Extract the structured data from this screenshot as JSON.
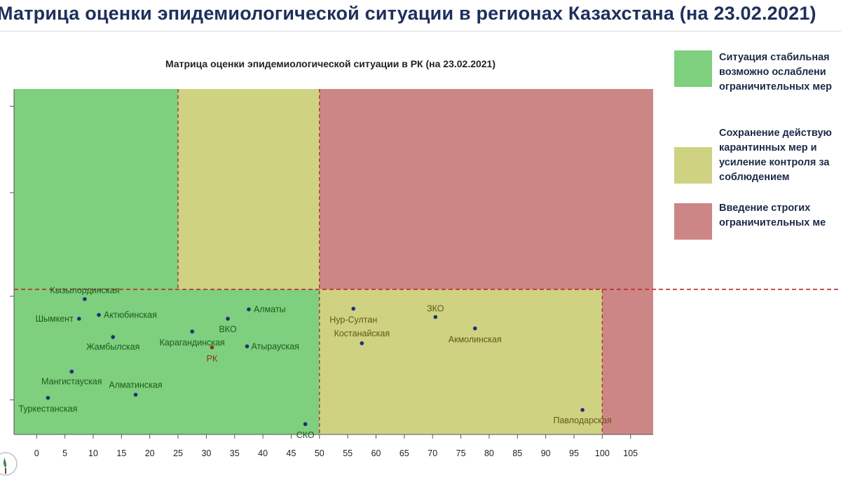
{
  "header": {
    "title": "Матрица оценки эпидемиологической ситуации в регионах Казахстана (на 23.02.2021)"
  },
  "legend": {
    "items": [
      {
        "label": "Ситуация стабильная\nвозможно ослаблени\nограничительных мер",
        "color": "#7ecf7e"
      },
      {
        "label": "Сохранение действую\nкарантинных мер и\nусиление контроля за\nсоблюдением",
        "color": "#cfd281"
      },
      {
        "label": "Введение строгих\nограничительных ме",
        "color": "#cd8686"
      }
    ]
  },
  "chart_data": {
    "type": "scatter",
    "title": "Матрица оценки эпидемиологической ситуации в РК (на 23.02.2021)",
    "xlabel": "",
    "ylabel": "",
    "xlim": [
      -4,
      109
    ],
    "x_ticks": [
      0,
      5,
      10,
      15,
      20,
      25,
      30,
      35,
      40,
      45,
      50,
      55,
      60,
      65,
      70,
      75,
      80,
      85,
      90,
      95,
      100,
      105
    ],
    "ylim": [
      0,
      1
    ],
    "y_ticks": [
      0.1,
      0.4,
      0.7,
      0.95
    ],
    "y_tick_labels": [
      "",
      "",
      "",
      ""
    ],
    "thresholds": {
      "x": [
        25,
        50,
        100
      ],
      "y": [
        0.42
      ]
    },
    "zones": [
      {
        "x": [
          -4,
          25
        ],
        "y": [
          0,
          1
        ],
        "color": "#7ecf7e"
      },
      {
        "x": [
          25,
          50
        ],
        "y": [
          0.42,
          1
        ],
        "color": "#cfd281"
      },
      {
        "x": [
          25,
          50
        ],
        "y": [
          0,
          0.42
        ],
        "color": "#7ecf7e"
      },
      {
        "x": [
          50,
          109
        ],
        "y": [
          0.42,
          1
        ],
        "color": "#cd8686"
      },
      {
        "x": [
          50,
          100
        ],
        "y": [
          0,
          0.42
        ],
        "color": "#cfd281"
      },
      {
        "x": [
          100,
          109
        ],
        "y": [
          0,
          0.42
        ],
        "color": "#cd8686"
      }
    ],
    "points": [
      {
        "name": "Кызылординская",
        "x": 8.5,
        "y": 0.392,
        "label_dx": 0,
        "label_dy": -8,
        "anchor": "middle",
        "label_color": "#1d5a1d"
      },
      {
        "name": "Шымкент",
        "x": 7.5,
        "y": 0.335,
        "label_dx": -8,
        "label_dy": 4,
        "anchor": "end",
        "label_color": "#1d5a1d"
      },
      {
        "name": "Актюбинская",
        "x": 11.0,
        "y": 0.346,
        "label_dx": 7,
        "label_dy": 4,
        "anchor": "start",
        "label_color": "#1d5a1d"
      },
      {
        "name": "Жамбылская",
        "x": 13.5,
        "y": 0.282,
        "label_dx": 0,
        "label_dy": 18,
        "anchor": "middle",
        "label_color": "#1d5a1d"
      },
      {
        "name": "Мангистауская",
        "x": 6.2,
        "y": 0.182,
        "label_dx": 0,
        "label_dy": 18,
        "anchor": "middle",
        "label_color": "#1d5a1d"
      },
      {
        "name": "Туркестанская",
        "x": 2.0,
        "y": 0.106,
        "label_dx": 0,
        "label_dy": 20,
        "anchor": "middle",
        "label_color": "#1d5a1d"
      },
      {
        "name": "Алматинская",
        "x": 17.5,
        "y": 0.115,
        "label_dx": 0,
        "label_dy": -10,
        "anchor": "middle",
        "label_color": "#1d5a1d"
      },
      {
        "name": "Карагандинская",
        "x": 27.5,
        "y": 0.298,
        "label_dx": 0,
        "label_dy": 20,
        "anchor": "middle",
        "label_color": "#1d5a1d"
      },
      {
        "name": "ВКО",
        "x": 33.8,
        "y": 0.335,
        "label_dx": 0,
        "label_dy": 19,
        "anchor": "middle",
        "label_color": "#1d5a1d"
      },
      {
        "name": "Алматы",
        "x": 37.5,
        "y": 0.362,
        "label_dx": 7,
        "label_dy": 4,
        "anchor": "start",
        "label_color": "#1d5a1d"
      },
      {
        "name": "Атырауская",
        "x": 37.2,
        "y": 0.255,
        "label_dx": 6,
        "label_dy": 4,
        "anchor": "start",
        "label_color": "#1d5a1d"
      },
      {
        "name": "РК",
        "x": 31.0,
        "y": 0.252,
        "label_dx": 0,
        "label_dy": 20,
        "anchor": "middle",
        "label_color": "#8a3a10",
        "point_color": "#8a3a10"
      },
      {
        "name": "СКО",
        "x": 47.5,
        "y": 0.03,
        "label_dx": 0,
        "label_dy": 20,
        "anchor": "middle",
        "label_color": "#1d5a1d"
      },
      {
        "name": "Нур-Султан",
        "x": 56.0,
        "y": 0.364,
        "label_dx": 0,
        "label_dy": 20,
        "anchor": "middle",
        "label_color": "#5e5a12"
      },
      {
        "name": "ЗКО",
        "x": 70.5,
        "y": 0.34,
        "label_dx": 0,
        "label_dy": -8,
        "anchor": "middle",
        "label_color": "#5e5a12"
      },
      {
        "name": "Костанайская",
        "x": 57.5,
        "y": 0.264,
        "label_dx": 0,
        "label_dy": -10,
        "anchor": "middle",
        "label_color": "#5e5a12"
      },
      {
        "name": "Акмолинская",
        "x": 77.5,
        "y": 0.307,
        "label_dx": 0,
        "label_dy": 20,
        "anchor": "middle",
        "label_color": "#5e5a12"
      },
      {
        "name": "Павлодарская",
        "x": 96.5,
        "y": 0.071,
        "label_dx": 0,
        "label_dy": 19,
        "anchor": "middle",
        "label_color": "#5e5a12"
      }
    ]
  }
}
